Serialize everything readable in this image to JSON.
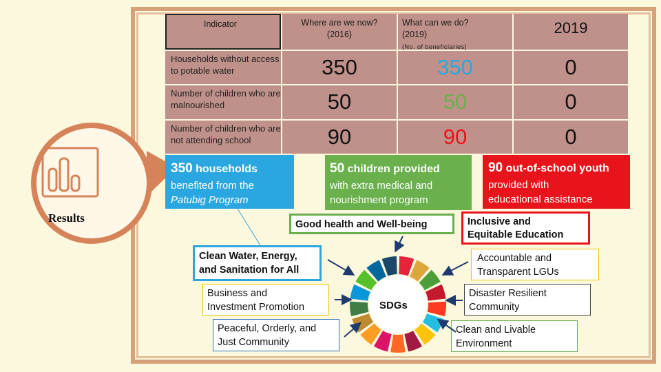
{
  "table": {
    "col_indicator": "Indicator",
    "col_now": "Where are we now?",
    "col_now_year": "(2016)",
    "col_can": "What can we do?",
    "col_can_year": "(2019)",
    "col_can_note": "(No. of beneficiaries)",
    "col_2019": "2019",
    "rows": [
      {
        "label": "Households without access to potable water",
        "now": "350",
        "can": "350",
        "y2019": "0"
      },
      {
        "label": "Number of children who are malnourished",
        "now": "50",
        "can": "50",
        "y2019": "0"
      },
      {
        "label": "Number of children who are not attending school",
        "now": "90",
        "can": "90",
        "y2019": "0"
      }
    ]
  },
  "results": {
    "label": "Results",
    "icon": "bar-chart-icon"
  },
  "outcomes": {
    "water": {
      "num": "350",
      "rest1": " households",
      "line2": "benefited from the",
      "line3": "Patubig Program"
    },
    "health": {
      "num": "50",
      "rest1": " children provided",
      "line2": "with extra medical and",
      "line3": "nourishment program"
    },
    "school": {
      "num": "90",
      "rest1": " out-of-school youth",
      "line2": "provided with",
      "line3": "educational assistance"
    }
  },
  "goals": {
    "health": "Good health and Well-being",
    "education_1": "Inclusive and",
    "education_2": "Equitable Education",
    "water_1": "Clean Water, Energy,",
    "water_2": "and Sanitation for All"
  },
  "sdgs": {
    "center": "SDGs",
    "left": [
      {
        "l1": "Business and",
        "l2": "Investment Promotion"
      },
      {
        "l1": "Peaceful, Orderly, and",
        "l2": "Just Community"
      }
    ],
    "right": [
      {
        "l1": "Accountable and",
        "l2": "Transparent LGUs"
      },
      {
        "l1": "Disaster Resilient",
        "l2": "Community"
      },
      {
        "l1": "Clean and Livable",
        "l2": "Environment"
      }
    ]
  },
  "colors": {
    "table_bg": "#c0918a",
    "water_blue": "#2aa7e0",
    "health_green": "#6ab04c",
    "school_red": "#e8131b",
    "frame": "#d7a27a"
  }
}
